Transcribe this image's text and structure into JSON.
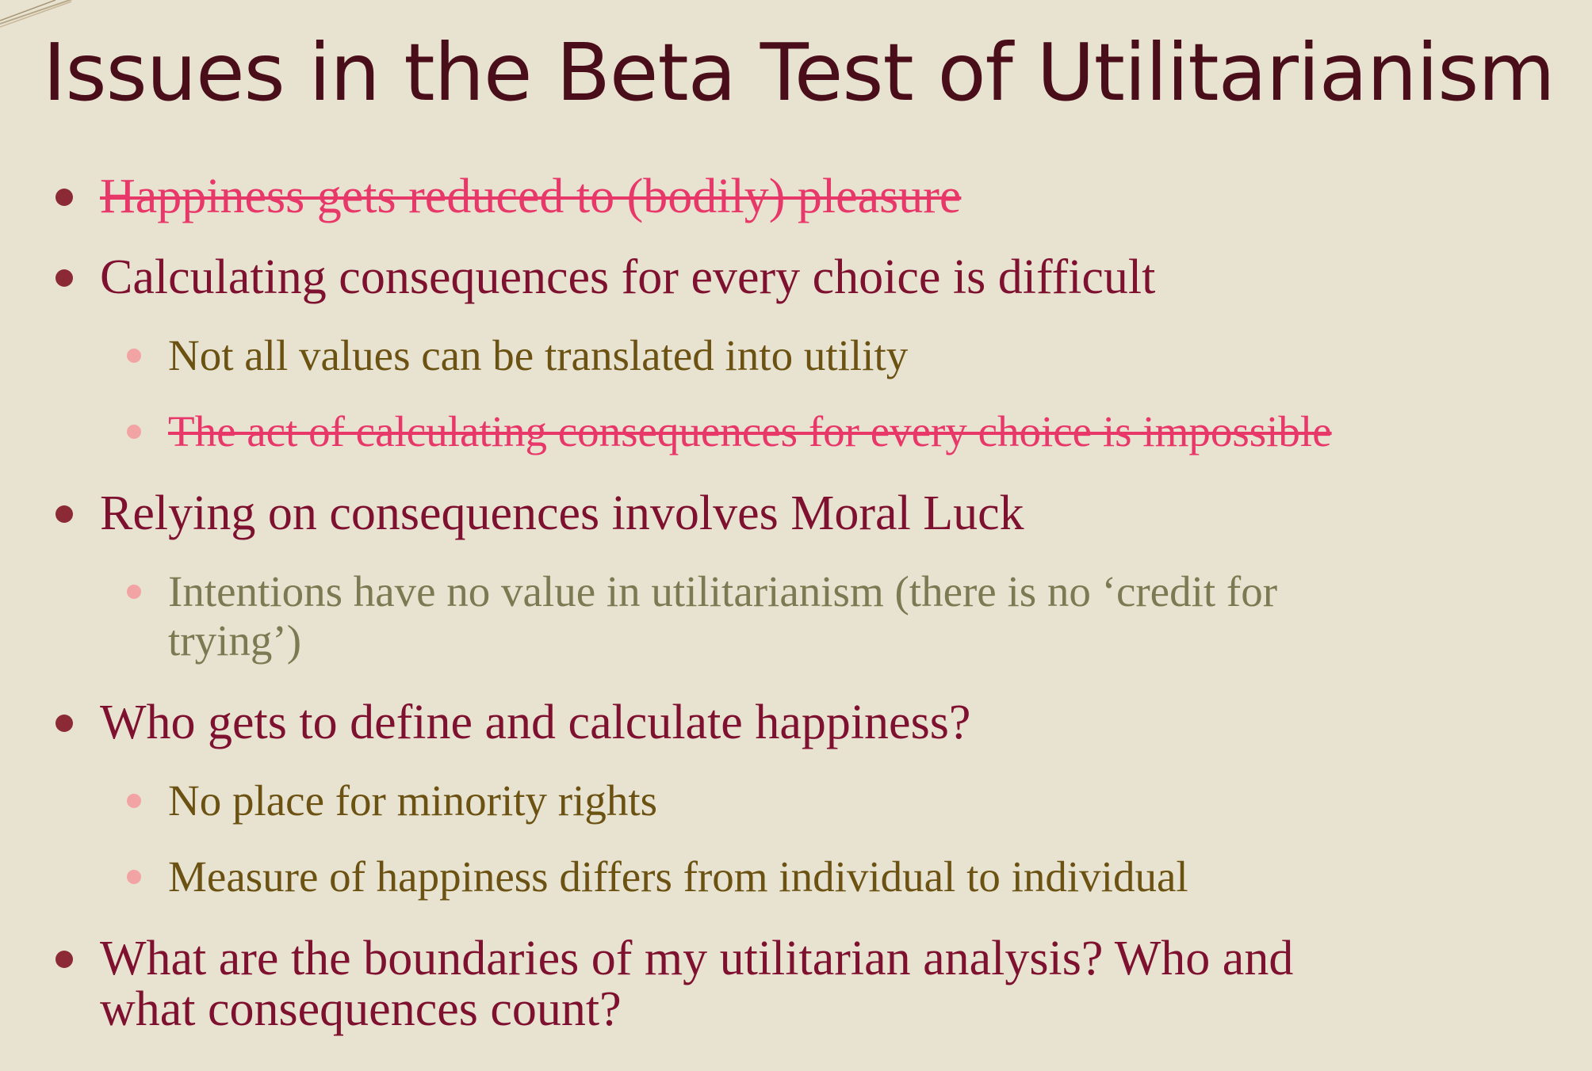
{
  "slide": {
    "title": "Issues in the Beta Test of Utilitarianism",
    "bullets": [
      {
        "level": 1,
        "text": "Happiness gets reduced to (bodily) pleasure",
        "struck": true
      },
      {
        "level": 1,
        "text": "Calculating consequences for every choice is difficult",
        "struck": false
      },
      {
        "level": 2,
        "text": "Not all values can be translated into utility",
        "struck": false
      },
      {
        "level": 2,
        "text": "The act of calculating consequences for every choice is impossible",
        "struck": true
      },
      {
        "level": 1,
        "text": "Relying on consequences involves Moral Luck",
        "struck": false
      },
      {
        "level": 2,
        "text_line1": "Intentions have no value in utilitarianism (there is no ‘credit for",
        "text_line2": "trying’)",
        "struck": false
      },
      {
        "level": 1,
        "text": "Who gets to define and calculate happiness?",
        "struck": false
      },
      {
        "level": 2,
        "text": "No place for minority rights",
        "struck": false
      },
      {
        "level": 2,
        "text": "Measure of happiness differs from individual to individual",
        "struck": false
      },
      {
        "level": 1,
        "text_line1": "What are the boundaries of my utilitarian analysis? Who and",
        "text_line2": "what consequences count?",
        "struck": false
      }
    ]
  },
  "colors": {
    "background": "#e8e3d0",
    "title": "#4a0e1a",
    "level1_text": "#7f1130",
    "level2_text": "#6b5212",
    "level2_muted_text": "#7b7a52",
    "struck_text": "#e8386a",
    "level1_bullet": "#8b2a35",
    "level2_bullet": "#f2a4a4"
  }
}
